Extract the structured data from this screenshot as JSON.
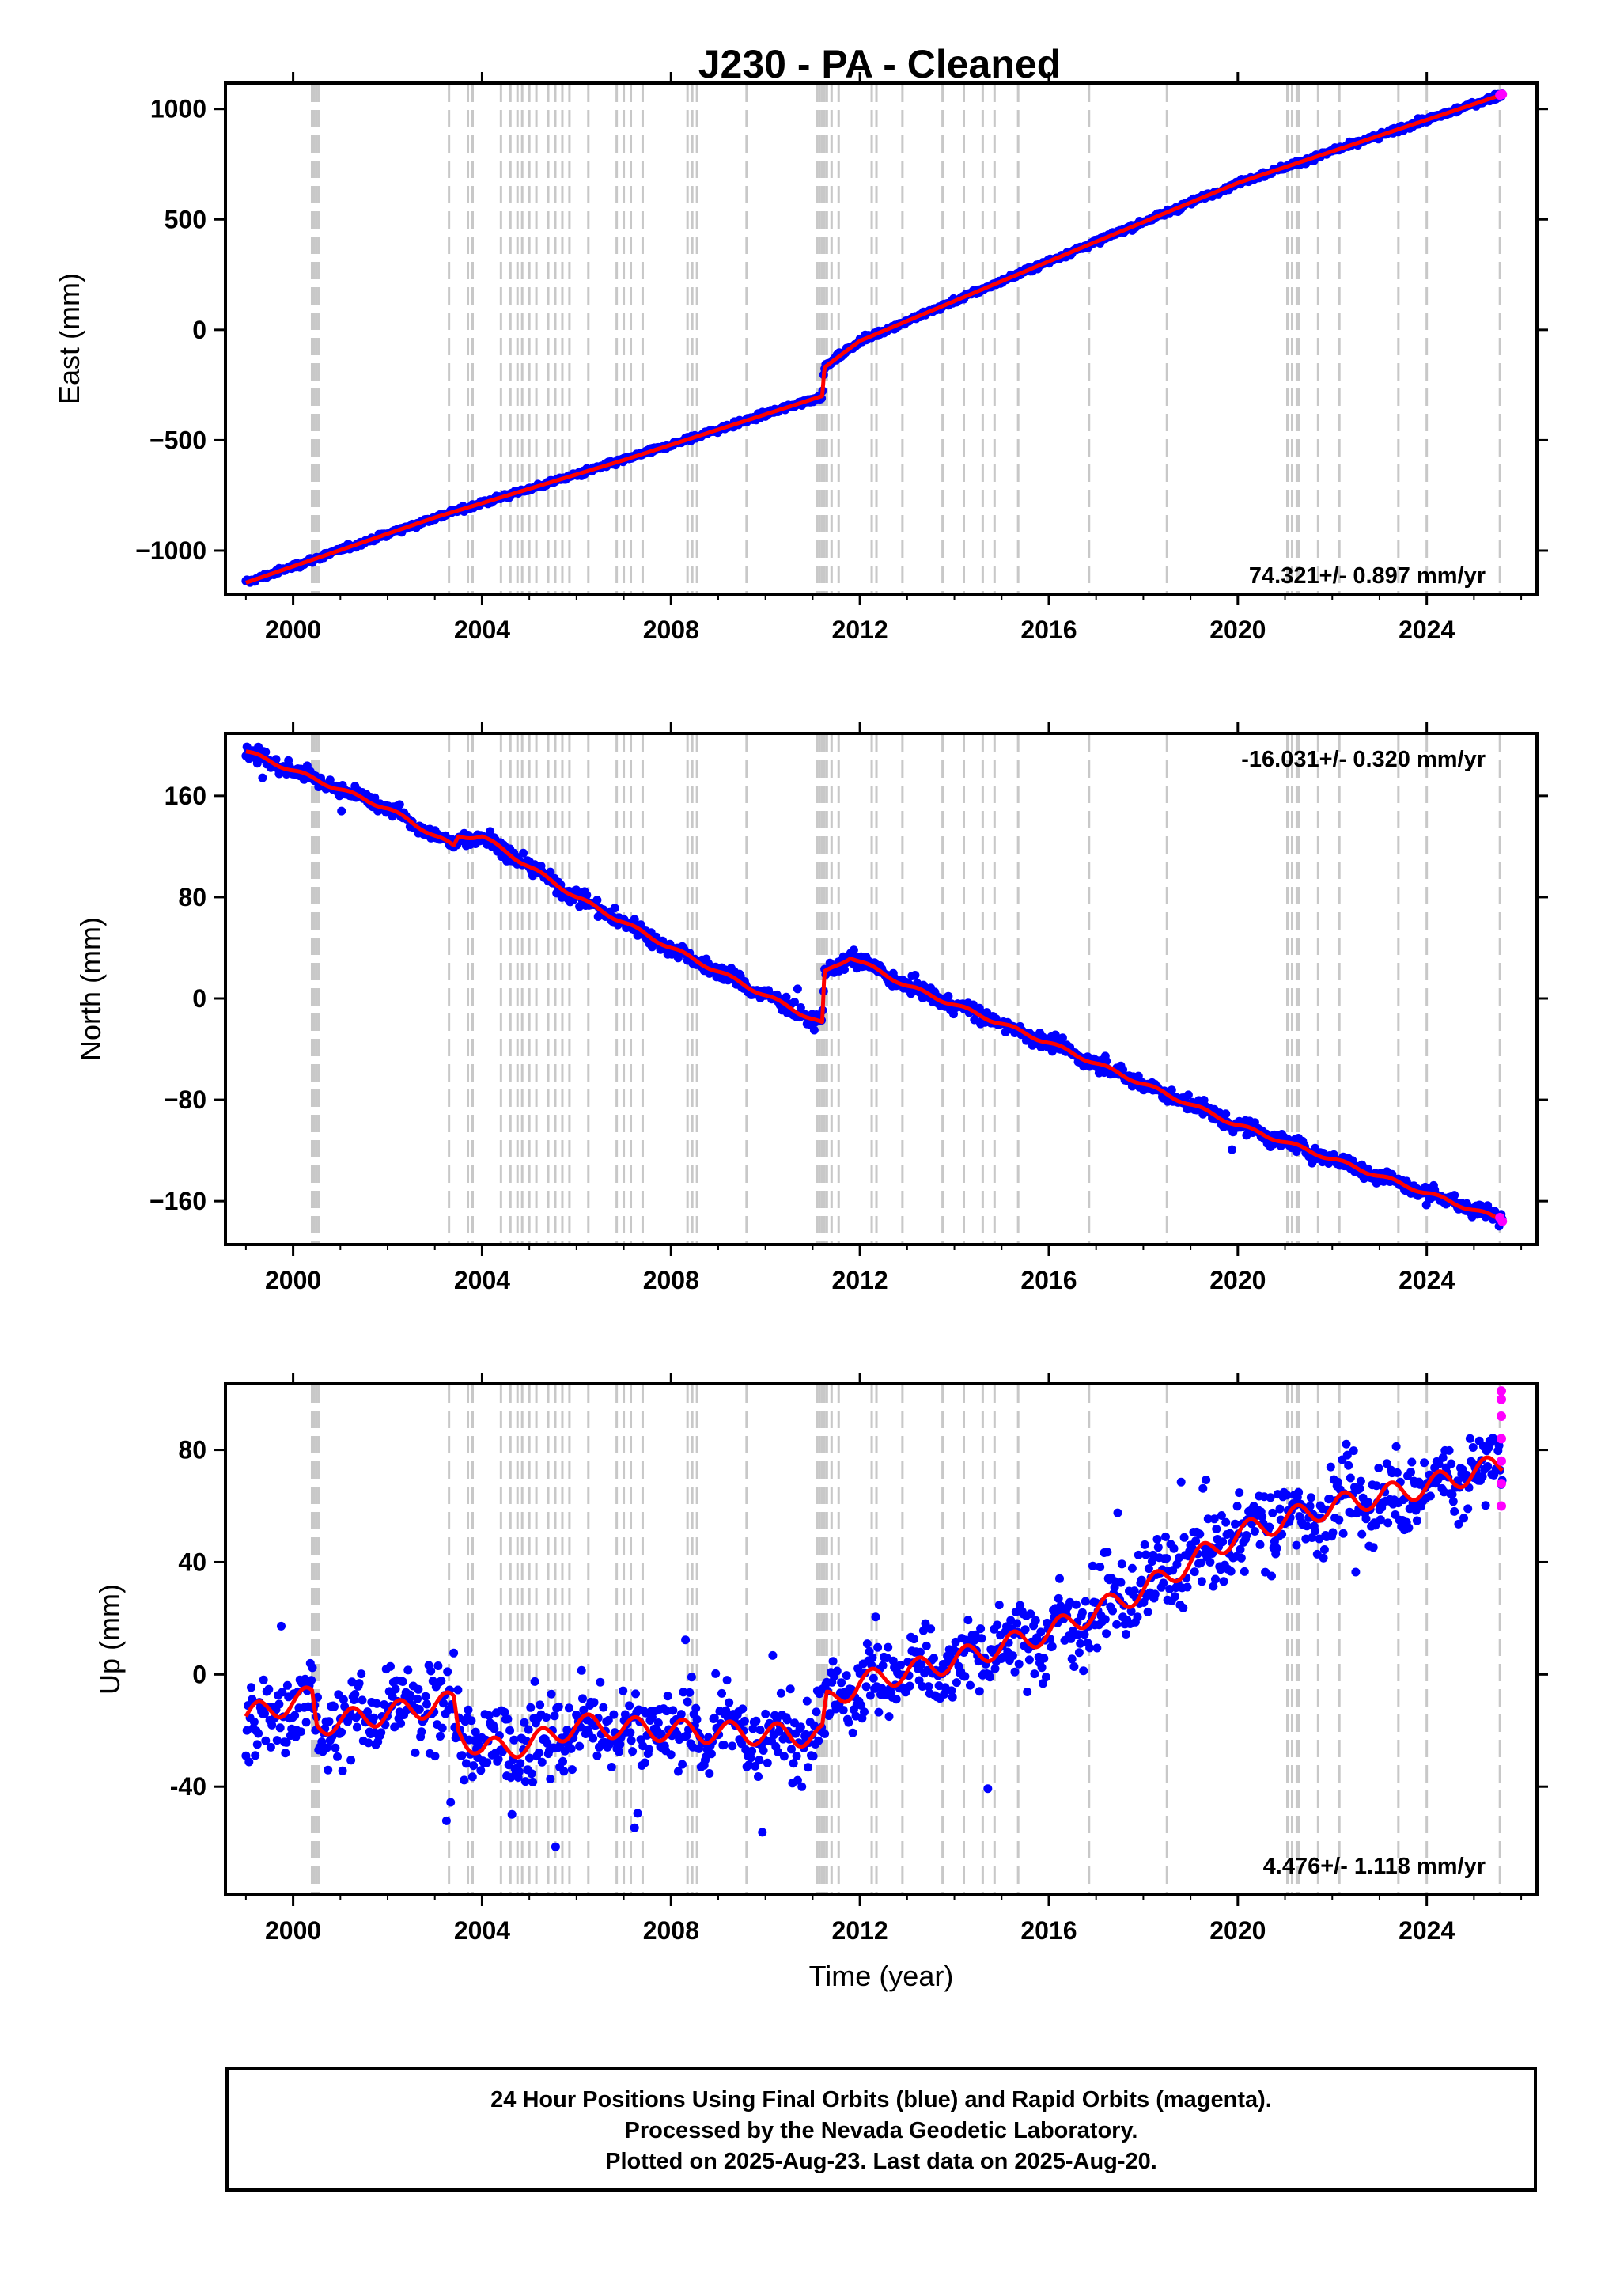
{
  "title": "J230  - PA - Cleaned",
  "footer": {
    "lines": [
      "24 Hour Positions Using Final Orbits (blue) and Rapid Orbits (magenta).",
      "Processed by the Nevada Geodetic Laboratory.",
      "Plotted on 2025-Aug-23. Last data on 2025-Aug-20."
    ]
  },
  "colors": {
    "final_orbits": "#0000ff",
    "rapid_orbits": "#ff00ff",
    "model": "#ff0000",
    "event_lines": "#c8c8c8"
  },
  "chart_data": [
    {
      "type": "scatter",
      "panel": "east",
      "xlabel": "",
      "ylabel": "East (mm)",
      "xlim": [
        1998.6,
        2026.3
      ],
      "ylim": [
        -1190,
        1110
      ],
      "x_ticks": [
        2000,
        2004,
        2008,
        2012,
        2016,
        2020,
        2024
      ],
      "x_tick_labels": [
        "2000",
        "2004",
        "2008",
        "2012",
        "2016",
        "2020",
        "2024"
      ],
      "y_ticks": [
        -1000,
        -500,
        0,
        500,
        1000
      ],
      "y_tick_labels": [
        "−1000",
        "−500",
        "0",
        "500",
        "1000"
      ],
      "rate_label": "74.321+/- 0.897 mm/yr",
      "rate_label_position": "bottom-right",
      "model_points": [
        [
          1999.0,
          -1145
        ],
        [
          2003.0,
          -850
        ],
        [
          2007.0,
          -590
        ],
        [
          2011.2,
          -300
        ],
        [
          2011.25,
          -170
        ],
        [
          2012.0,
          -50
        ],
        [
          2016.0,
          310
        ],
        [
          2020.0,
          665
        ],
        [
          2025.6,
          1065
        ]
      ],
      "noise_mm": 6,
      "outlier_rate": 0,
      "rapid_points": [
        [
          2025.55,
          1063
        ],
        [
          2025.6,
          1066
        ]
      ]
    },
    {
      "type": "scatter",
      "panel": "north",
      "xlabel": "",
      "ylabel": "North (mm)",
      "xlim": [
        1998.6,
        2026.3
      ],
      "ylim": [
        -193,
        208
      ],
      "x_ticks": [
        2000,
        2004,
        2008,
        2012,
        2016,
        2020,
        2024
      ],
      "x_tick_labels": [
        "2000",
        "2004",
        "2008",
        "2012",
        "2016",
        "2020",
        "2024"
      ],
      "y_ticks": [
        -160,
        -80,
        0,
        80,
        160
      ],
      "y_tick_labels": [
        "−160",
        "−80",
        "0",
        "80",
        "160"
      ],
      "rate_label": "-16.031+/- 0.320 mm/yr",
      "rate_label_position": "top-right",
      "model_points": [
        [
          1999.0,
          195
        ],
        [
          2002.0,
          150
        ],
        [
          2003.4,
          120
        ],
        [
          2003.5,
          128
        ],
        [
          2004.0,
          128
        ],
        [
          2006.0,
          80
        ],
        [
          2008.0,
          40
        ],
        [
          2011.2,
          -20
        ],
        [
          2011.25,
          20
        ],
        [
          2011.8,
          33
        ],
        [
          2013.0,
          10
        ],
        [
          2016.0,
          -35
        ],
        [
          2020.0,
          -100
        ],
        [
          2025.6,
          -175
        ]
      ],
      "noise_mm": 3,
      "outlier_rate": 0.004,
      "rapid_points": [
        [
          2025.55,
          -173
        ],
        [
          2025.6,
          -176
        ]
      ]
    },
    {
      "type": "scatter",
      "panel": "up",
      "xlabel": "Time (year)",
      "ylabel": "Up (mm)",
      "xlim": [
        1998.6,
        2026.3
      ],
      "ylim": [
        -78,
        103
      ],
      "x_ticks": [
        2000,
        2004,
        2008,
        2012,
        2016,
        2020,
        2024
      ],
      "x_tick_labels": [
        "2000",
        "2004",
        "2008",
        "2012",
        "2016",
        "2020",
        "2024"
      ],
      "y_ticks": [
        -40,
        0,
        40,
        80
      ],
      "y_tick_labels": [
        "-40",
        "0",
        "40",
        "80"
      ],
      "rate_label": "4.476+/- 1.118 mm/yr",
      "rate_label_position": "bottom-right",
      "model_points": [
        [
          1999.0,
          -15
        ],
        [
          2000.4,
          -8
        ],
        [
          2000.5,
          -18
        ],
        [
          2003.4,
          -10
        ],
        [
          2003.5,
          -20
        ],
        [
          2004.0,
          -27
        ],
        [
          2005.0,
          -25
        ],
        [
          2006.0,
          -18
        ],
        [
          2008.0,
          -20
        ],
        [
          2011.2,
          -22
        ],
        [
          2011.3,
          -10
        ],
        [
          2012.0,
          -3
        ],
        [
          2014.0,
          5
        ],
        [
          2016.0,
          15
        ],
        [
          2018.0,
          30
        ],
        [
          2020.0,
          50
        ],
        [
          2022.0,
          60
        ],
        [
          2024.0,
          67
        ],
        [
          2025.6,
          75
        ]
      ],
      "noise_mm": 7,
      "outlier_rate": 0.01,
      "rapid_points": [
        [
          2025.58,
          60
        ],
        [
          2025.58,
          68
        ],
        [
          2025.58,
          76
        ],
        [
          2025.58,
          84
        ],
        [
          2025.58,
          92
        ],
        [
          2025.58,
          98
        ],
        [
          2025.58,
          101
        ]
      ]
    }
  ],
  "event_lines": [
    [
      2000.4,
      2000.45,
      2000.5,
      2000.55
    ],
    [
      2003.3,
      2003.7,
      2003.8,
      2004.4,
      2004.6,
      2004.75,
      2004.85,
      2005.0,
      2005.15,
      2005.4,
      2005.55,
      2005.7,
      2005.85,
      2006.25,
      2006.85,
      2007.0,
      2007.15,
      2007.4,
      2008.35,
      2008.45,
      2008.55,
      2009.6
    ],
    [
      2011.1,
      2011.15,
      2011.2,
      2011.25,
      2011.3,
      2011.4,
      2011.55,
      2012.25,
      2012.35,
      2012.9,
      2013.75,
      2014.2,
      2014.6,
      2014.85,
      2015.35,
      2016.85,
      2018.5
    ],
    [
      2021.05,
      2021.15,
      2021.25,
      2021.3,
      2021.7,
      2022.15,
      2023.4,
      2024.0,
      2025.55
    ]
  ]
}
